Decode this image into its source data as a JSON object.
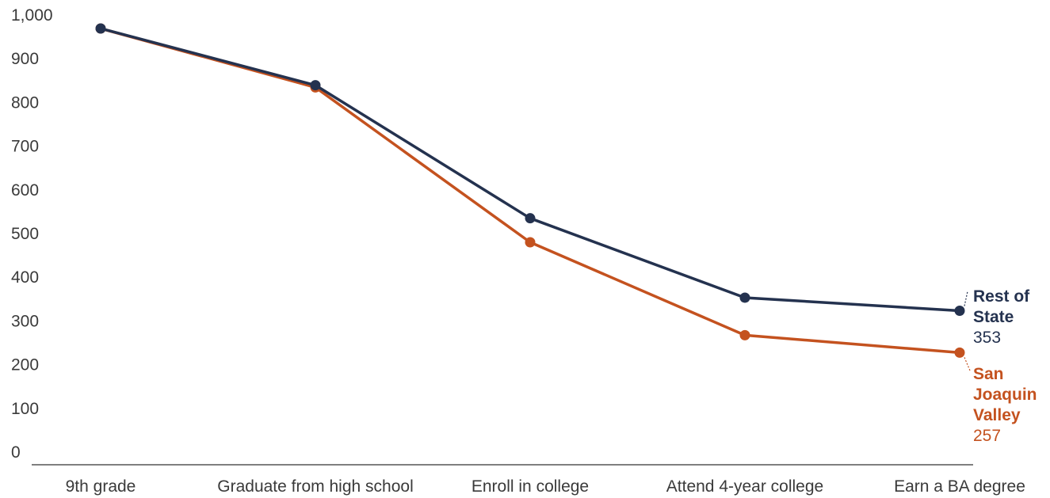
{
  "chart_data": {
    "type": "line",
    "categories": [
      "9th grade",
      "Graduate from high school",
      "Enroll in college",
      "Attend 4-year college",
      "Earn a BA degree"
    ],
    "y_ticks": [
      "0",
      "100",
      "200",
      "300",
      "400",
      "500",
      "600",
      "700",
      "800",
      "900",
      "1,000"
    ],
    "ylim": [
      0,
      1000
    ],
    "grid": false,
    "series": [
      {
        "name_lines": [
          "Rest of",
          "State"
        ],
        "end_label": "353",
        "color": "#24324f",
        "values": [
          1000,
          870,
          565,
          383,
          353
        ]
      },
      {
        "name_lines": [
          "San",
          "Joaquin",
          "Valley"
        ],
        "end_label": "257",
        "color": "#c4521f",
        "values": [
          1000,
          865,
          510,
          297,
          257
        ]
      }
    ]
  }
}
